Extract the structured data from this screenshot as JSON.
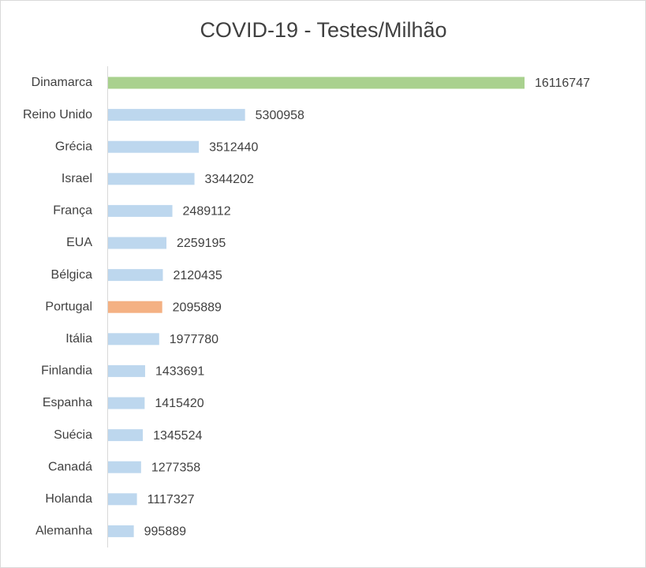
{
  "chart_data": {
    "type": "bar",
    "orientation": "horizontal",
    "title": "COVID-19 - Testes/Milhão",
    "categories": [
      "Dinamarca",
      "Reino Unido",
      "Grécia",
      "Israel",
      "França",
      "EUA",
      "Bélgica",
      "Portugal",
      "Itália",
      "Finlandia",
      "Espanha",
      "Suécia",
      "Canadá",
      "Holanda",
      "Alemanha"
    ],
    "values": [
      16116747,
      5300958,
      3512440,
      3344202,
      2489112,
      2259195,
      2120435,
      2095889,
      1977780,
      1433691,
      1415420,
      1345524,
      1277358,
      1117327,
      995889
    ],
    "colors": [
      "#a9d18e",
      "#bdd7ee",
      "#bdd7ee",
      "#bdd7ee",
      "#bdd7ee",
      "#bdd7ee",
      "#bdd7ee",
      "#f4b183",
      "#bdd7ee",
      "#bdd7ee",
      "#bdd7ee",
      "#bdd7ee",
      "#bdd7ee",
      "#bdd7ee",
      "#bdd7ee"
    ]
  }
}
